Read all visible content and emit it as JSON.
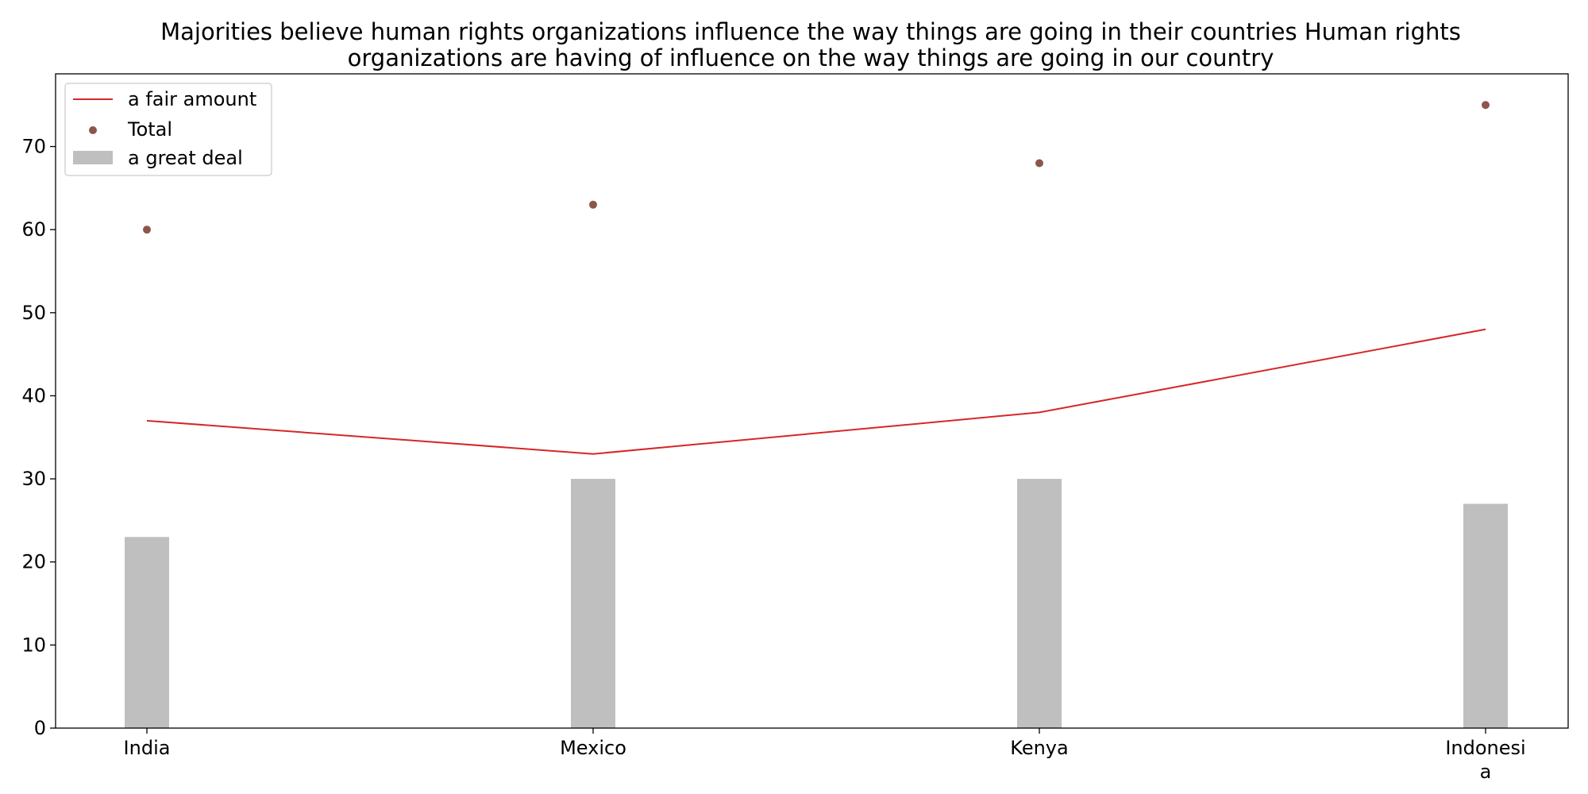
{
  "chart_data": {
    "type": "bar",
    "title_lines": [
      "Majorities believe human rights organizations influence the way things are going in their countries Human rights",
      "organizations are having of influence on the way things are going in our country"
    ],
    "categories": [
      "India",
      "Mexico",
      "Kenya",
      "Indonesia"
    ],
    "category_label_lines": [
      [
        "India"
      ],
      [
        "Mexico"
      ],
      [
        "Kenya"
      ],
      [
        "Indonesi",
        "a"
      ]
    ],
    "series": [
      {
        "name": "a fair amount",
        "type": "line",
        "color": "#d62728",
        "values": [
          37,
          33,
          38,
          48
        ]
      },
      {
        "name": "Total",
        "type": "scatter",
        "color": "#8c564b",
        "values": [
          60,
          63,
          68,
          75
        ]
      },
      {
        "name": "a great deal",
        "type": "bar",
        "color": "#bfbfbf",
        "values": [
          23,
          30,
          30,
          27
        ]
      }
    ],
    "ylim": [
      0,
      78.75
    ],
    "yticks": [
      0,
      10,
      20,
      30,
      40,
      50,
      60,
      70
    ],
    "xlabel": "",
    "ylabel": "",
    "grid": false,
    "legend_position": "top-left"
  }
}
